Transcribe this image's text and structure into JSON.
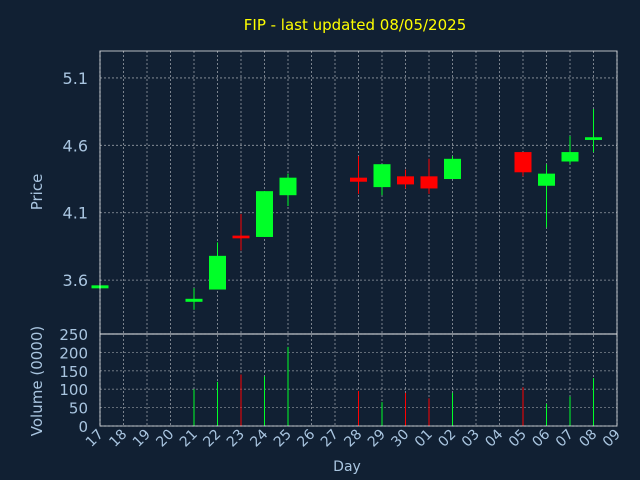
{
  "colors": {
    "background": "#112033",
    "title": "#ffff00",
    "axis_text": "#a9c5e0",
    "grid": "#ffffff",
    "frame": "#ffffff",
    "up": "#00ff28",
    "down": "#ff0000"
  },
  "chart_data": {
    "type": "candlestick",
    "title": "FIP - last updated 08/05/2025",
    "xlabel": "Day",
    "price_panel": {
      "ylabel": "Price",
      "ylim": [
        3.2,
        5.3
      ],
      "yticks": [
        "3.6",
        "4.1",
        "4.6",
        "5.1"
      ]
    },
    "volume_panel": {
      "ylabel": "Volume (0000)",
      "ylim": [
        0,
        250
      ],
      "yticks": [
        "0",
        "50",
        "100",
        "150",
        "200",
        "250"
      ]
    },
    "x_tick_labels": [
      "17",
      "18",
      "19",
      "20",
      "21",
      "22",
      "23",
      "24",
      "25",
      "26",
      "27",
      "28",
      "29",
      "30",
      "01",
      "02",
      "03",
      "04",
      "05",
      "06",
      "07",
      "08",
      "09"
    ],
    "grid": true,
    "candles": [
      {
        "day": "17",
        "open": 3.55,
        "high": 3.55,
        "low": 3.55,
        "close": 3.55,
        "volume": 0
      },
      {
        "day": "21",
        "open": 3.45,
        "high": 3.54,
        "low": 3.38,
        "close": 3.45,
        "volume": 100
      },
      {
        "day": "22",
        "open": 3.53,
        "high": 3.88,
        "low": 3.53,
        "close": 3.78,
        "volume": 120
      },
      {
        "day": "23",
        "open": 3.93,
        "high": 4.09,
        "low": 3.82,
        "close": 3.91,
        "volume": 140
      },
      {
        "day": "24",
        "open": 3.92,
        "high": 4.26,
        "low": 3.92,
        "close": 4.26,
        "volume": 135
      },
      {
        "day": "25",
        "open": 4.23,
        "high": 4.39,
        "low": 4.15,
        "close": 4.36,
        "volume": 215
      },
      {
        "day": "28",
        "open": 4.36,
        "high": 4.52,
        "low": 4.24,
        "close": 4.33,
        "volume": 95
      },
      {
        "day": "29",
        "open": 4.29,
        "high": 4.46,
        "low": 4.23,
        "close": 4.46,
        "volume": 65
      },
      {
        "day": "30",
        "open": 4.37,
        "high": 4.42,
        "low": 4.28,
        "close": 4.31,
        "volume": 90
      },
      {
        "day": "01",
        "open": 4.37,
        "high": 4.5,
        "low": 4.24,
        "close": 4.28,
        "volume": 75
      },
      {
        "day": "02",
        "open": 4.35,
        "high": 4.52,
        "low": 4.35,
        "close": 4.5,
        "volume": 90
      },
      {
        "day": "05",
        "open": 4.55,
        "high": 4.55,
        "low": 4.37,
        "close": 4.4,
        "volume": 105
      },
      {
        "day": "06",
        "open": 4.3,
        "high": 4.46,
        "low": 3.99,
        "close": 4.39,
        "volume": 60
      },
      {
        "day": "07",
        "open": 4.48,
        "high": 4.67,
        "low": 4.46,
        "close": 4.55,
        "volume": 80
      },
      {
        "day": "08",
        "open": 4.64,
        "high": 4.87,
        "low": 4.55,
        "close": 4.66,
        "volume": 130
      }
    ]
  }
}
